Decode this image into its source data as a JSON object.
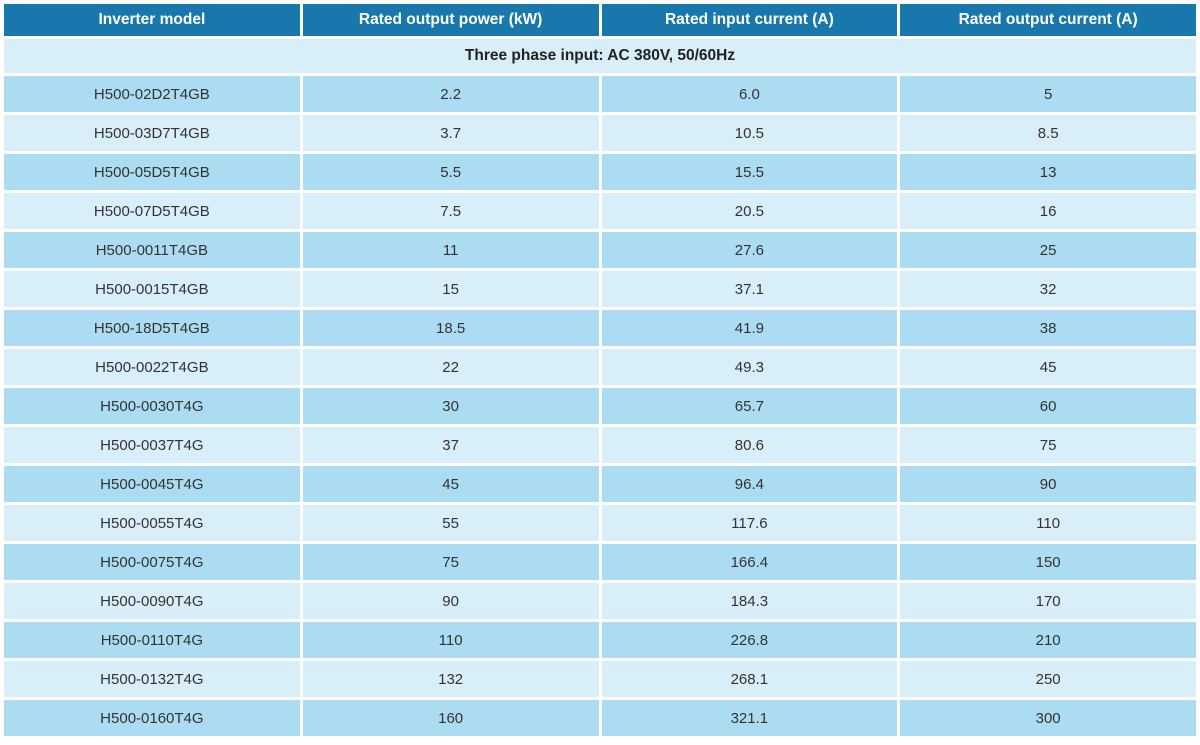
{
  "colors": {
    "header_bg": "#1878AC",
    "row_dark": "#ACDCF1",
    "row_light": "#D8EEF9",
    "text": "#333333",
    "header_text": "#FFFFFF",
    "page_bg": "#FFFFFF"
  },
  "table": {
    "columns": [
      "Inverter model",
      "Rated output power (kW)",
      "Rated input current (A)",
      "Rated output current (A)"
    ],
    "subheader": "Three phase input: AC 380V, 50/60Hz",
    "rows": [
      {
        "model": "H500-02D2T4GB",
        "power": "2.2",
        "input_current": "6.0",
        "output_current": "5"
      },
      {
        "model": "H500-03D7T4GB",
        "power": "3.7",
        "input_current": "10.5",
        "output_current": "8.5"
      },
      {
        "model": "H500-05D5T4GB",
        "power": "5.5",
        "input_current": "15.5",
        "output_current": "13"
      },
      {
        "model": "H500-07D5T4GB",
        "power": "7.5",
        "input_current": "20.5",
        "output_current": "16"
      },
      {
        "model": "H500-0011T4GB",
        "power": "11",
        "input_current": "27.6",
        "output_current": "25"
      },
      {
        "model": "H500-0015T4GB",
        "power": "15",
        "input_current": "37.1",
        "output_current": "32"
      },
      {
        "model": "H500-18D5T4GB",
        "power": "18.5",
        "input_current": "41.9",
        "output_current": "38"
      },
      {
        "model": "H500-0022T4GB",
        "power": "22",
        "input_current": "49.3",
        "output_current": "45"
      },
      {
        "model": "H500-0030T4G",
        "power": "30",
        "input_current": "65.7",
        "output_current": "60"
      },
      {
        "model": "H500-0037T4G",
        "power": "37",
        "input_current": "80.6",
        "output_current": "75"
      },
      {
        "model": "H500-0045T4G",
        "power": "45",
        "input_current": "96.4",
        "output_current": "90"
      },
      {
        "model": "H500-0055T4G",
        "power": "55",
        "input_current": "117.6",
        "output_current": "110"
      },
      {
        "model": "H500-0075T4G",
        "power": "75",
        "input_current": "166.4",
        "output_current": "150"
      },
      {
        "model": "H500-0090T4G",
        "power": "90",
        "input_current": "184.3",
        "output_current": "170"
      },
      {
        "model": "H500-0110T4G",
        "power": "110",
        "input_current": "226.8",
        "output_current": "210"
      },
      {
        "model": "H500-0132T4G",
        "power": "132",
        "input_current": "268.1",
        "output_current": "250"
      },
      {
        "model": "H500-0160T4G",
        "power": "160",
        "input_current": "321.1",
        "output_current": "300"
      }
    ]
  }
}
